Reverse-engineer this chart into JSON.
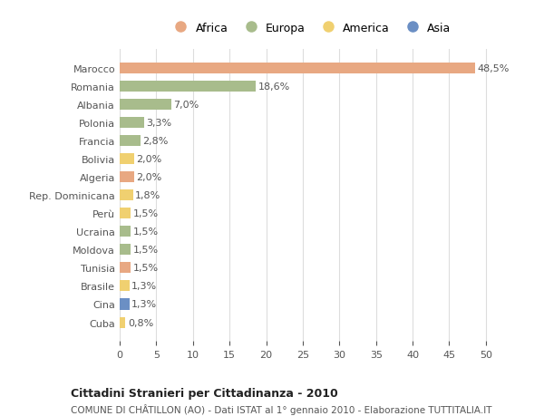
{
  "countries": [
    "Marocco",
    "Romania",
    "Albania",
    "Polonia",
    "Francia",
    "Bolivia",
    "Algeria",
    "Rep. Dominicana",
    "Perù",
    "Ucraina",
    "Moldova",
    "Tunisia",
    "Brasile",
    "Cina",
    "Cuba"
  ],
  "values": [
    48.5,
    18.6,
    7.0,
    3.3,
    2.8,
    2.0,
    2.0,
    1.8,
    1.5,
    1.5,
    1.5,
    1.5,
    1.3,
    1.3,
    0.8
  ],
  "labels": [
    "48,5%",
    "18,6%",
    "7,0%",
    "3,3%",
    "2,8%",
    "2,0%",
    "2,0%",
    "1,8%",
    "1,5%",
    "1,5%",
    "1,5%",
    "1,5%",
    "1,3%",
    "1,3%",
    "0,8%"
  ],
  "continents": [
    "Africa",
    "Europa",
    "Europa",
    "Europa",
    "Europa",
    "America",
    "Africa",
    "America",
    "America",
    "Europa",
    "Europa",
    "Africa",
    "America",
    "Asia",
    "America"
  ],
  "colors": {
    "Africa": "#E8A882",
    "Europa": "#A8BC8C",
    "America": "#F0D070",
    "Asia": "#6B8FC4"
  },
  "legend_order": [
    "Africa",
    "Europa",
    "America",
    "Asia"
  ],
  "title": "Cittadini Stranieri per Cittadinanza - 2010",
  "subtitle": "COMUNE DI CHÂTILLON (AO) - Dati ISTAT al 1° gennaio 2010 - Elaborazione TUTTITALIA.IT",
  "xlim": [
    0,
    52
  ],
  "xticks": [
    0,
    5,
    10,
    15,
    20,
    25,
    30,
    35,
    40,
    45,
    50
  ],
  "background_color": "#ffffff",
  "grid_color": "#dddddd"
}
